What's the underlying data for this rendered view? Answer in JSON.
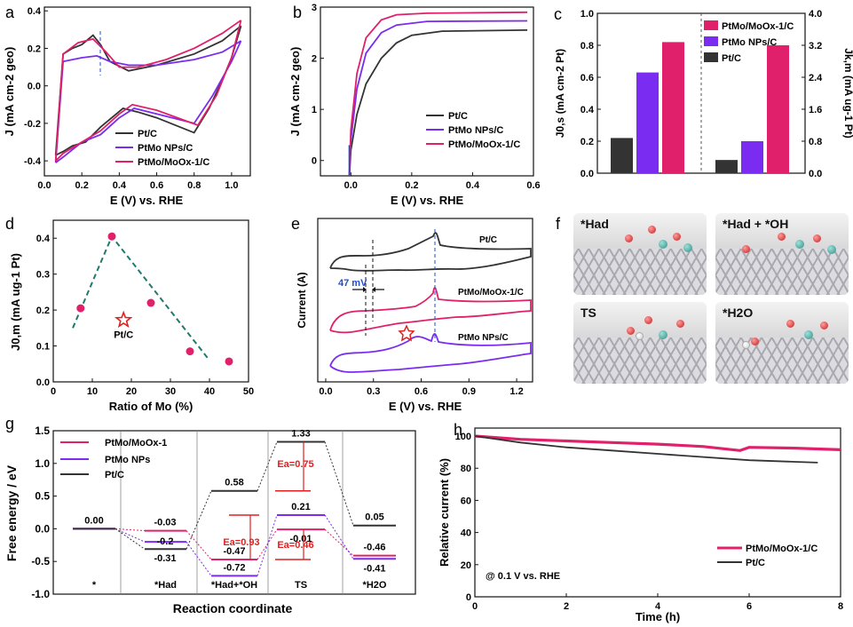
{
  "panel_labels": {
    "a": "a",
    "b": "b",
    "c": "c",
    "d": "d",
    "e": "e",
    "f": "f",
    "g": "g",
    "h": "h"
  },
  "colors": {
    "ptc": "#333333",
    "ptmo": "#7a2cf0",
    "moox": "#e0206a",
    "teal": "#1f7a6e",
    "red": "#e02020"
  },
  "chart_data": [
    {
      "id": "a",
      "type": "line",
      "xlabel": "E (V) vs. RHE",
      "ylabel": "J (mA cm-2 geo)",
      "xlim": [
        0,
        1.1
      ],
      "ylim": [
        -0.48,
        0.42
      ],
      "xticks": [
        "0.0",
        "0.2",
        "0.4",
        "0.6",
        "0.8",
        "1.0"
      ],
      "yticks": [
        "0.4",
        "0.2",
        "0.0",
        "-0.2",
        "-0.4"
      ],
      "legend": [
        "Pt/C",
        "PtMo NPs/C",
        "PtMo/MoOx-1/C"
      ],
      "series": [
        {
          "name": "Pt/C",
          "upper": [
            [
              0.06,
              -0.37
            ],
            [
              0.1,
              0.17
            ],
            [
              0.15,
              0.2
            ],
            [
              0.2,
              0.22
            ],
            [
              0.26,
              0.27
            ],
            [
              0.3,
              0.22
            ],
            [
              0.35,
              0.13
            ],
            [
              0.45,
              0.08
            ],
            [
              0.6,
              0.11
            ],
            [
              0.8,
              0.17
            ],
            [
              0.95,
              0.24
            ],
            [
              1.05,
              0.32
            ]
          ],
          "lower": [
            [
              1.05,
              0.32
            ],
            [
              1.0,
              0.15
            ],
            [
              0.95,
              0.03
            ],
            [
              0.88,
              -0.12
            ],
            [
              0.8,
              -0.25
            ],
            [
              0.6,
              -0.17
            ],
            [
              0.5,
              -0.14
            ],
            [
              0.42,
              -0.12
            ],
            [
              0.3,
              -0.22
            ],
            [
              0.22,
              -0.3
            ],
            [
              0.15,
              -0.32
            ],
            [
              0.1,
              -0.35
            ],
            [
              0.06,
              -0.37
            ]
          ]
        },
        {
          "name": "PtMo NPs/C",
          "upper": [
            [
              0.06,
              -0.41
            ],
            [
              0.1,
              0.13
            ],
            [
              0.2,
              0.15
            ],
            [
              0.28,
              0.16
            ],
            [
              0.35,
              0.13
            ],
            [
              0.45,
              0.11
            ],
            [
              0.6,
              0.11
            ],
            [
              0.8,
              0.14
            ],
            [
              0.95,
              0.18
            ],
            [
              1.05,
              0.24
            ]
          ],
          "lower": [
            [
              1.05,
              0.24
            ],
            [
              1.0,
              0.13
            ],
            [
              0.9,
              -0.05
            ],
            [
              0.8,
              -0.2
            ],
            [
              0.6,
              -0.15
            ],
            [
              0.48,
              -0.12
            ],
            [
              0.4,
              -0.17
            ],
            [
              0.3,
              -0.26
            ],
            [
              0.2,
              -0.3
            ],
            [
              0.1,
              -0.38
            ],
            [
              0.06,
              -0.41
            ]
          ]
        },
        {
          "name": "PtMo/MoOx-1/C",
          "upper": [
            [
              0.06,
              -0.4
            ],
            [
              0.1,
              0.17
            ],
            [
              0.18,
              0.23
            ],
            [
              0.26,
              0.25
            ],
            [
              0.33,
              0.18
            ],
            [
              0.4,
              0.1
            ],
            [
              0.5,
              0.1
            ],
            [
              0.65,
              0.14
            ],
            [
              0.8,
              0.2
            ],
            [
              0.95,
              0.28
            ],
            [
              1.05,
              0.35
            ]
          ],
          "lower": [
            [
              1.05,
              0.35
            ],
            [
              1.0,
              0.15
            ],
            [
              0.92,
              -0.05
            ],
            [
              0.82,
              -0.21
            ],
            [
              0.6,
              -0.13
            ],
            [
              0.47,
              -0.1
            ],
            [
              0.4,
              -0.15
            ],
            [
              0.3,
              -0.24
            ],
            [
              0.2,
              -0.3
            ],
            [
              0.1,
              -0.36
            ],
            [
              0.06,
              -0.4
            ]
          ]
        }
      ]
    },
    {
      "id": "b",
      "type": "line",
      "xlabel": "E (V) vs. RHE",
      "ylabel": "J (mA cm-2 geo)",
      "xlim": [
        -0.1,
        0.6
      ],
      "ylim": [
        -0.3,
        3.0
      ],
      "xticks": [
        "0.0",
        "0.2",
        "0.4",
        "0.6"
      ],
      "yticks": [
        "0",
        "1",
        "2",
        "3"
      ],
      "legend": [
        "Pt/C",
        "PtMo NPs/C",
        "PtMo/MoOx-1/C"
      ],
      "series": [
        {
          "name": "Pt/C",
          "points": [
            [
              -0.005,
              -0.3
            ],
            [
              0.0,
              0.2
            ],
            [
              0.02,
              0.9
            ],
            [
              0.05,
              1.5
            ],
            [
              0.1,
              2.0
            ],
            [
              0.15,
              2.3
            ],
            [
              0.2,
              2.45
            ],
            [
              0.3,
              2.53
            ],
            [
              0.58,
              2.55
            ]
          ]
        },
        {
          "name": "PtMo NPs/C",
          "points": [
            [
              -0.005,
              -0.3
            ],
            [
              0.0,
              0.4
            ],
            [
              0.02,
              1.4
            ],
            [
              0.05,
              2.1
            ],
            [
              0.1,
              2.5
            ],
            [
              0.15,
              2.65
            ],
            [
              0.25,
              2.72
            ],
            [
              0.58,
              2.73
            ]
          ]
        },
        {
          "name": "PtMo/MoOx-1/C",
          "points": [
            [
              -0.005,
              -0.3
            ],
            [
              0.0,
              0.6
            ],
            [
              0.02,
              1.7
            ],
            [
              0.05,
              2.4
            ],
            [
              0.1,
              2.75
            ],
            [
              0.15,
              2.85
            ],
            [
              0.25,
              2.88
            ],
            [
              0.58,
              2.9
            ]
          ]
        }
      ]
    },
    {
      "id": "c",
      "type": "bar",
      "ylabel_left": "J0,s (mA cm-2 Pt)",
      "ylabel_right": "Jk,m (mA ug-1 Pt)",
      "ylim_left": [
        0,
        1.0
      ],
      "ylim_right": [
        0,
        4.0
      ],
      "yticks_left": [
        "0.0",
        "0.2",
        "0.4",
        "0.6",
        "0.8",
        "1.0"
      ],
      "yticks_right": [
        "0.0",
        "0.8",
        "1.6",
        "2.4",
        "3.2",
        "4.0"
      ],
      "legend": [
        "PtMo/MoOx-1/C",
        "PtMo NPs/C",
        "Pt/C"
      ],
      "groups": [
        {
          "name": "left",
          "values": {
            "Pt/C": 0.22,
            "PtMo NPs/C": 0.63,
            "PtMo/MoOx-1/C": 0.82
          }
        },
        {
          "name": "right",
          "values": {
            "Pt/C": 0.33,
            "PtMo NPs/C": 0.8,
            "PtMo/MoOx-1/C": 3.2
          }
        }
      ]
    },
    {
      "id": "d",
      "type": "scatter",
      "xlabel": "Ratio of Mo (%)",
      "ylabel": "J0,m (mA ug-1 Pt)",
      "xlim": [
        0,
        50
      ],
      "ylim": [
        0,
        0.45
      ],
      "xticks": [
        "0",
        "10",
        "20",
        "30",
        "40",
        "50"
      ],
      "yticks": [
        "0.0",
        "0.1",
        "0.2",
        "0.3",
        "0.4"
      ],
      "points": [
        [
          7,
          0.205
        ],
        [
          15,
          0.405
        ],
        [
          25,
          0.22
        ],
        [
          35,
          0.085
        ],
        [
          45,
          0.057
        ]
      ],
      "reference": {
        "label": "Pt/C",
        "x": 18,
        "y": 0.172
      },
      "trend": [
        [
          5,
          0.15
        ],
        [
          15,
          0.405
        ],
        [
          40,
          0.06
        ]
      ]
    },
    {
      "id": "e",
      "type": "line",
      "xlabel": "E (V) vs. RHE",
      "ylabel": "Current (A)",
      "xlim": [
        -0.05,
        1.3
      ],
      "xticks": [
        "0.0",
        "0.3",
        "0.6",
        "0.9",
        "1.2"
      ],
      "annotation": "47 mV",
      "series": [
        {
          "name": "Pt/C",
          "label": "Pt/C"
        },
        {
          "name": "PtMo/MoOx-1/C",
          "label": "PtMo/MoOx-1/C"
        },
        {
          "name": "PtMo NPs/C",
          "label": "PtMo NPs/C"
        }
      ]
    },
    {
      "id": "g",
      "type": "line",
      "xlabel": "Reaction coordinate",
      "ylabel": "Free energy / eV",
      "ylim": [
        -1.0,
        1.5
      ],
      "yticks": [
        "1.5",
        "1.0",
        "0.5",
        "0.0",
        "-0.5",
        "-1.0"
      ],
      "categories": [
        "*",
        "*Had",
        "*Had+*OH",
        "TS",
        "*H2O"
      ],
      "legend": [
        "PtMo/MoOx-1",
        "PtMo NPs",
        "Pt/C"
      ],
      "series": [
        {
          "name": "PtMo/MoOx-1",
          "values": [
            0.0,
            -0.03,
            -0.47,
            -0.01,
            -0.41
          ]
        },
        {
          "name": "PtMo NPs",
          "values": [
            0.0,
            -0.2,
            -0.72,
            0.21,
            -0.46
          ]
        },
        {
          "name": "Pt/C",
          "values": [
            0.0,
            -0.31,
            0.58,
            1.33,
            0.05
          ]
        }
      ],
      "labels": {
        "zero": "0.00",
        "ptc": [
          "-0.31",
          "0.58",
          "1.33",
          "0.05"
        ],
        "ptmo": [
          "-0.2",
          "-0.72",
          "0.21",
          "-0.46"
        ],
        "moox": [
          "-0.03",
          "-0.47",
          "-0.01",
          "-0.41"
        ]
      },
      "ea": [
        "Ea=0.93",
        "Ea=0.75",
        "Ea=0.46"
      ]
    },
    {
      "id": "h",
      "type": "line",
      "xlabel": "Time (h)",
      "ylabel": "Relative current (%)",
      "xlim": [
        0,
        8
      ],
      "ylim": [
        0,
        105
      ],
      "xticks": [
        "0",
        "2",
        "4",
        "6",
        "8"
      ],
      "yticks": [
        "0",
        "20",
        "40",
        "60",
        "80",
        "100"
      ],
      "annotation": "@ 0.1 V vs. RHE",
      "legend": [
        "PtMo/MoOx-1/C",
        "Pt/C"
      ],
      "series": [
        {
          "name": "PtMo/MoOx-1/C",
          "points": [
            [
              0,
              100
            ],
            [
              1,
              98
            ],
            [
              2,
              97
            ],
            [
              3,
              96
            ],
            [
              4,
              95
            ],
            [
              5,
              93.5
            ],
            [
              5.8,
              91
            ],
            [
              6,
              93
            ],
            [
              7,
              92.5
            ],
            [
              8,
              91.5
            ]
          ]
        },
        {
          "name": "Pt/C",
          "points": [
            [
              0,
              100
            ],
            [
              1,
              96
            ],
            [
              2,
              93
            ],
            [
              3,
              91
            ],
            [
              4,
              89
            ],
            [
              5,
              87
            ],
            [
              6,
              85
            ],
            [
              7,
              84
            ],
            [
              7.5,
              83.5
            ]
          ]
        }
      ]
    }
  ],
  "panel_f": {
    "labels": [
      "*Had",
      "*Had + *OH",
      "TS",
      "*H2O"
    ]
  }
}
